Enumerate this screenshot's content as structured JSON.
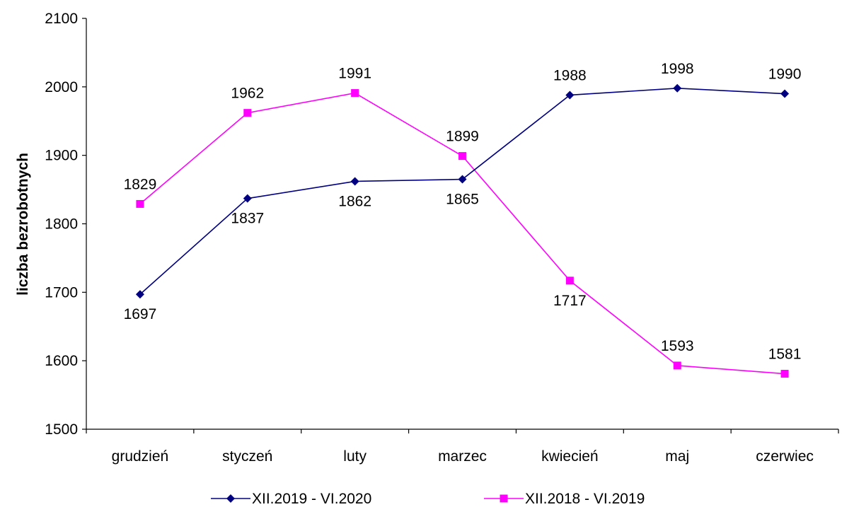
{
  "chart_data": {
    "type": "line",
    "title": "",
    "xlabel": "",
    "ylabel": "liczba bezrobotnych",
    "ylim": [
      1500,
      2100
    ],
    "yticks": [
      1500,
      1600,
      1700,
      1800,
      1900,
      2000,
      2100
    ],
    "grid": false,
    "legend_position": "bottom",
    "categories": [
      "grudzień",
      "styczeń",
      "luty",
      "marzec",
      "kwiecień",
      "maj",
      "czerwiec"
    ],
    "series": [
      {
        "name": "XII.2019 - VI.2020",
        "color": "#000080",
        "marker": "diamond",
        "values": [
          1697,
          1837,
          1862,
          1865,
          1988,
          1998,
          1990
        ],
        "label_positions": [
          "below",
          "below",
          "below",
          "below",
          "above",
          "above",
          "above"
        ]
      },
      {
        "name": "XII.2018 - VI.2019",
        "color": "#ff00ff",
        "marker": "square",
        "values": [
          1829,
          1962,
          1991,
          1899,
          1717,
          1593,
          1581
        ],
        "label_positions": [
          "above",
          "above",
          "above",
          "above",
          "below",
          "above",
          "above"
        ]
      }
    ]
  }
}
